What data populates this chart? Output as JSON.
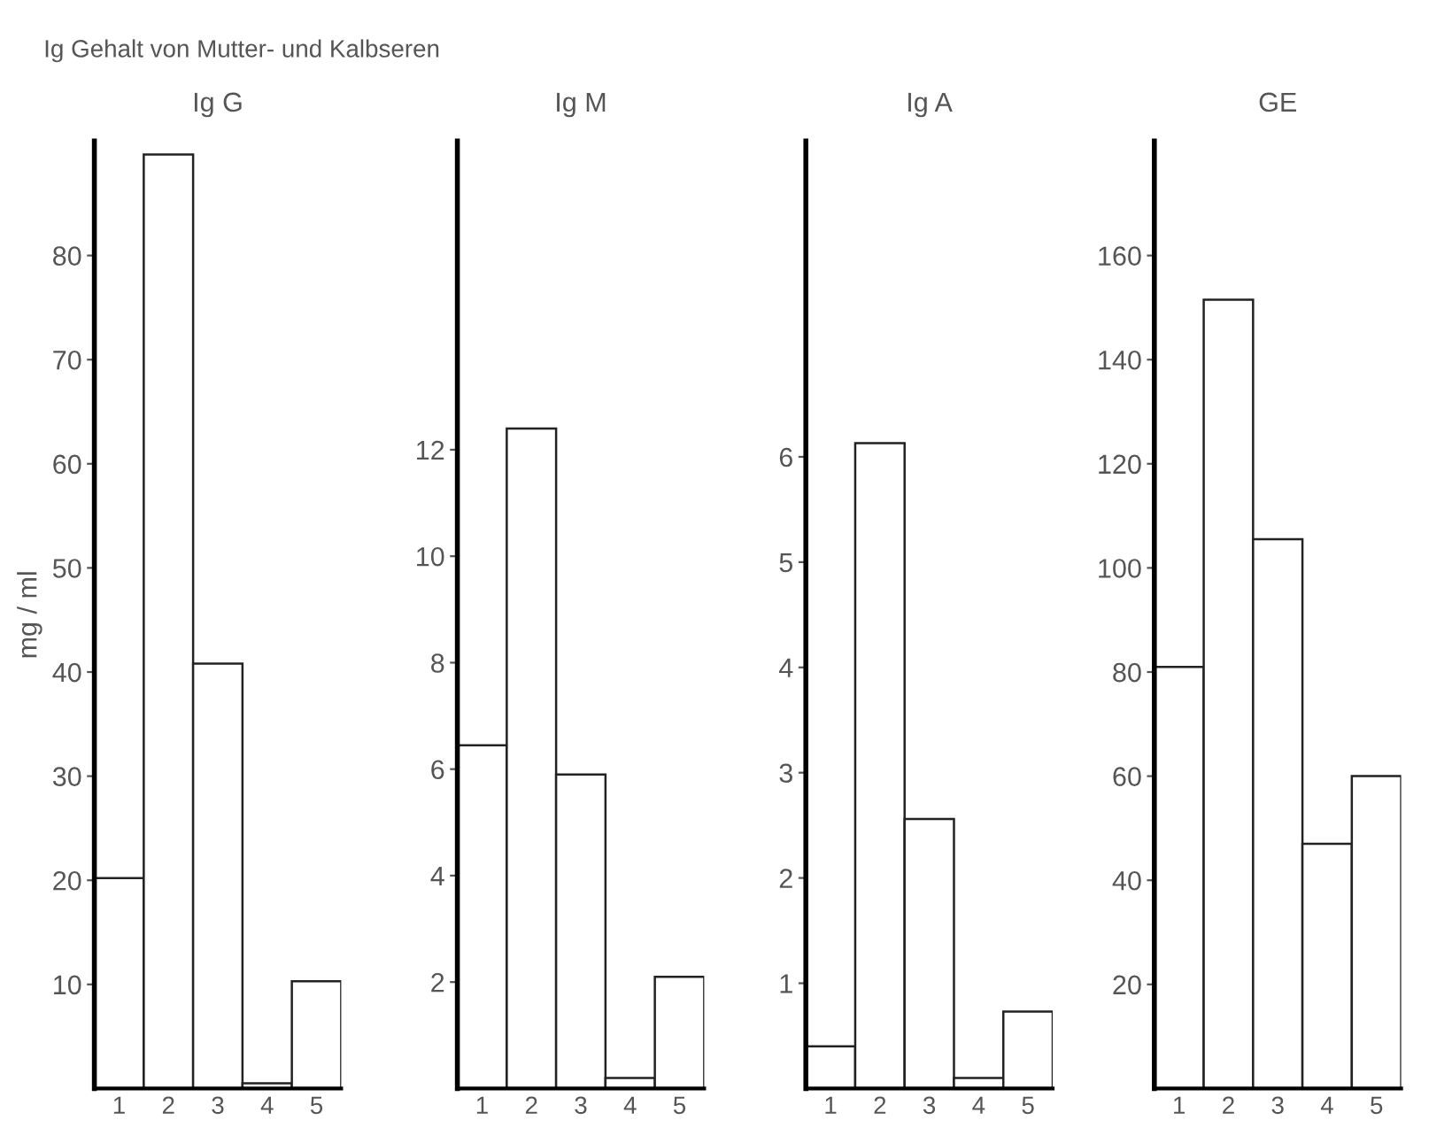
{
  "chart_data": [
    {
      "type": "bar",
      "title": "Ig G",
      "ylabel": "mg / ml",
      "annotations": [
        "Ig Gehalt von Mutter- und Kalbseren"
      ],
      "categories": [
        "1",
        "2",
        "3",
        "4",
        "5"
      ],
      "values": [
        20.2,
        89.7,
        40.8,
        0.5,
        10.3
      ],
      "color": "#ffffff",
      "ylim": [
        0,
        91
      ],
      "yticks": [
        10,
        20,
        30,
        40,
        50,
        60,
        70,
        80
      ],
      "grid": false,
      "legend": false
    },
    {
      "type": "bar",
      "title": "Ig M",
      "categories": [
        "1",
        "2",
        "3",
        "4",
        "5"
      ],
      "values": [
        6.45,
        12.4,
        5.9,
        0.2,
        2.1
      ],
      "color": "#ffffff",
      "ylim": [
        0,
        17.8
      ],
      "yticks": [
        2,
        4,
        6,
        8,
        10,
        12
      ],
      "grid": false,
      "legend": false
    },
    {
      "type": "bar",
      "title": "Ig A",
      "categories": [
        "1",
        "2",
        "3",
        "4",
        "5"
      ],
      "values": [
        0.4,
        6.13,
        2.56,
        0.1,
        0.73
      ],
      "color": "#ffffff",
      "ylim": [
        0,
        9.0
      ],
      "yticks": [
        1,
        2,
        3,
        4,
        5,
        6
      ],
      "grid": false,
      "legend": false
    },
    {
      "type": "bar",
      "title": "GE",
      "categories": [
        "1",
        "2",
        "3",
        "4",
        "5"
      ],
      "values": [
        81,
        151.5,
        105.5,
        47,
        60
      ],
      "color": "#ffffff",
      "ylim": [
        0,
        182
      ],
      "yticks": [
        20,
        40,
        60,
        80,
        100,
        120,
        140,
        160
      ],
      "grid": false,
      "legend": false
    }
  ]
}
